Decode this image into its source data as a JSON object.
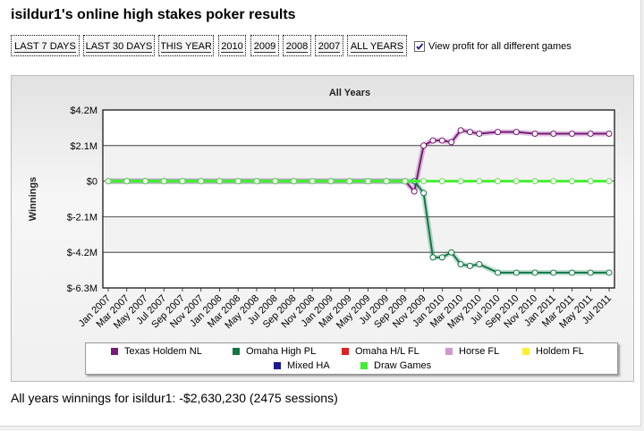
{
  "page": {
    "title": "isildur1's online high stakes poker results"
  },
  "filters": [
    {
      "label": "LAST 7 DAYS"
    },
    {
      "label": "LAST 30 DAYS"
    },
    {
      "label": "THIS YEAR"
    },
    {
      "label": "2010"
    },
    {
      "label": "2009"
    },
    {
      "label": "2008"
    },
    {
      "label": "2007"
    },
    {
      "label": "ALL YEARS"
    }
  ],
  "options": {
    "view_profit_label": "View profit for all different games",
    "view_profit_checked": true
  },
  "summary": {
    "text": "All years winnings for isildur1: -$2,630,230 (2475 sessions)"
  },
  "colors": {
    "accent_green": "#66ff33",
    "texas_holdem": "#7b1a7b",
    "omaha_high": "#117744",
    "omaha_hl": "#dd2222",
    "horse": "#cc99cc",
    "holdem_fl": "#ffee33",
    "mixed_ha": "#1a1a8c",
    "draw_games": "#44ee33"
  },
  "chart_data": {
    "type": "line",
    "title": "All Years",
    "ylabel": "Winnings",
    "xlabel": "",
    "ylim": [
      -6.3,
      4.2
    ],
    "y_unit": "millions USD",
    "y_ticks": [
      "$4.2M",
      "$2.1M",
      "$0",
      "$-2.1M",
      "$-4.2M",
      "$-6.3M"
    ],
    "y_tick_values": [
      4.2,
      2.1,
      0,
      -2.1,
      -4.2,
      -6.3
    ],
    "x_tick_labels": [
      "Jan 2007",
      "Mar 2007",
      "May 2007",
      "Jul 2007",
      "Sep 2007",
      "Nov 2007",
      "Jan 2008",
      "Mar 2008",
      "May 2008",
      "Jul 2008",
      "Sep 2008",
      "Nov 2008",
      "Jan 2009",
      "Mar 2009",
      "May 2009",
      "Jul 2009",
      "Sep 2009",
      "Nov 2009",
      "Jan 2010",
      "Mar 2010",
      "May 2010",
      "Jul 2010",
      "Sep 2010",
      "Nov 2010",
      "Jan 2011",
      "Mar 2011",
      "May 2011",
      "Jul 2011"
    ],
    "legend_position": "bottom",
    "series": [
      {
        "name": "Texas Holdem NL",
        "color": "#7b1a7b",
        "x": [
          "Jan 2007",
          "Mar 2007",
          "May 2007",
          "Jul 2007",
          "Sep 2007",
          "Nov 2007",
          "Jan 2008",
          "Mar 2008",
          "May 2008",
          "Jul 2008",
          "Sep 2008",
          "Nov 2008",
          "Jan 2009",
          "Mar 2009",
          "May 2009",
          "Jul 2009",
          "Sep 2009",
          "Oct 2009",
          "Nov 2009",
          "Dec 2009",
          "Jan 2010",
          "Feb 2010",
          "Mar 2010",
          "Apr 2010",
          "May 2010",
          "Jul 2010",
          "Sep 2010",
          "Nov 2010",
          "Jan 2011",
          "Mar 2011",
          "May 2011",
          "Jul 2011"
        ],
        "values": [
          0,
          0,
          0,
          0,
          0,
          0,
          0,
          0,
          0,
          0,
          0,
          0,
          0,
          0,
          0,
          0,
          0,
          -0.6,
          2.1,
          2.4,
          2.4,
          2.3,
          3.0,
          2.9,
          2.8,
          2.9,
          2.9,
          2.8,
          2.8,
          2.8,
          2.8,
          2.8
        ]
      },
      {
        "name": "Omaha High PL",
        "color": "#117744",
        "x": [
          "Jan 2007",
          "Mar 2007",
          "May 2007",
          "Jul 2007",
          "Sep 2007",
          "Nov 2007",
          "Jan 2008",
          "Mar 2008",
          "May 2008",
          "Jul 2008",
          "Sep 2008",
          "Nov 2008",
          "Jan 2009",
          "Mar 2009",
          "May 2009",
          "Jul 2009",
          "Sep 2009",
          "Oct 2009",
          "Nov 2009",
          "Dec 2009",
          "Jan 2010",
          "Feb 2010",
          "Mar 2010",
          "Apr 2010",
          "May 2010",
          "Jul 2010",
          "Sep 2010",
          "Nov 2010",
          "Jan 2011",
          "Mar 2011",
          "May 2011",
          "Jul 2011"
        ],
        "values": [
          0,
          0,
          0,
          0,
          0,
          0,
          0,
          0,
          0,
          0,
          0,
          0,
          0,
          0,
          0,
          0,
          0,
          0.0,
          -0.7,
          -4.5,
          -4.5,
          -4.2,
          -4.9,
          -5.0,
          -4.9,
          -5.4,
          -5.4,
          -5.4,
          -5.4,
          -5.4,
          -5.4,
          -5.4
        ]
      },
      {
        "name": "Omaha H/L FL",
        "color": "#dd2222",
        "values": []
      },
      {
        "name": "Horse FL",
        "color": "#cc99cc",
        "values": []
      },
      {
        "name": "Holdem FL",
        "color": "#ffee33",
        "values": []
      },
      {
        "name": "Mixed HA",
        "color": "#1a1a8c",
        "values": []
      },
      {
        "name": "Draw Games",
        "color": "#44ee33",
        "x": [
          "Jan 2007",
          "Mar 2007",
          "May 2007",
          "Jul 2007",
          "Sep 2007",
          "Nov 2007",
          "Jan 2008",
          "Mar 2008",
          "May 2008",
          "Jul 2008",
          "Sep 2008",
          "Nov 2008",
          "Jan 2009",
          "Mar 2009",
          "May 2009",
          "Jul 2009",
          "Sep 2009",
          "Nov 2009",
          "Jan 2010",
          "Mar 2010",
          "May 2010",
          "Jul 2010",
          "Sep 2010",
          "Nov 2010",
          "Jan 2011",
          "Mar 2011",
          "May 2011",
          "Jul 2011"
        ],
        "values": [
          0,
          0,
          0,
          0,
          0,
          0,
          0,
          0,
          0,
          0,
          0,
          0,
          0,
          0,
          0,
          0,
          0,
          0,
          0,
          0,
          0,
          0,
          0,
          0,
          0,
          0,
          0,
          0
        ]
      }
    ]
  }
}
